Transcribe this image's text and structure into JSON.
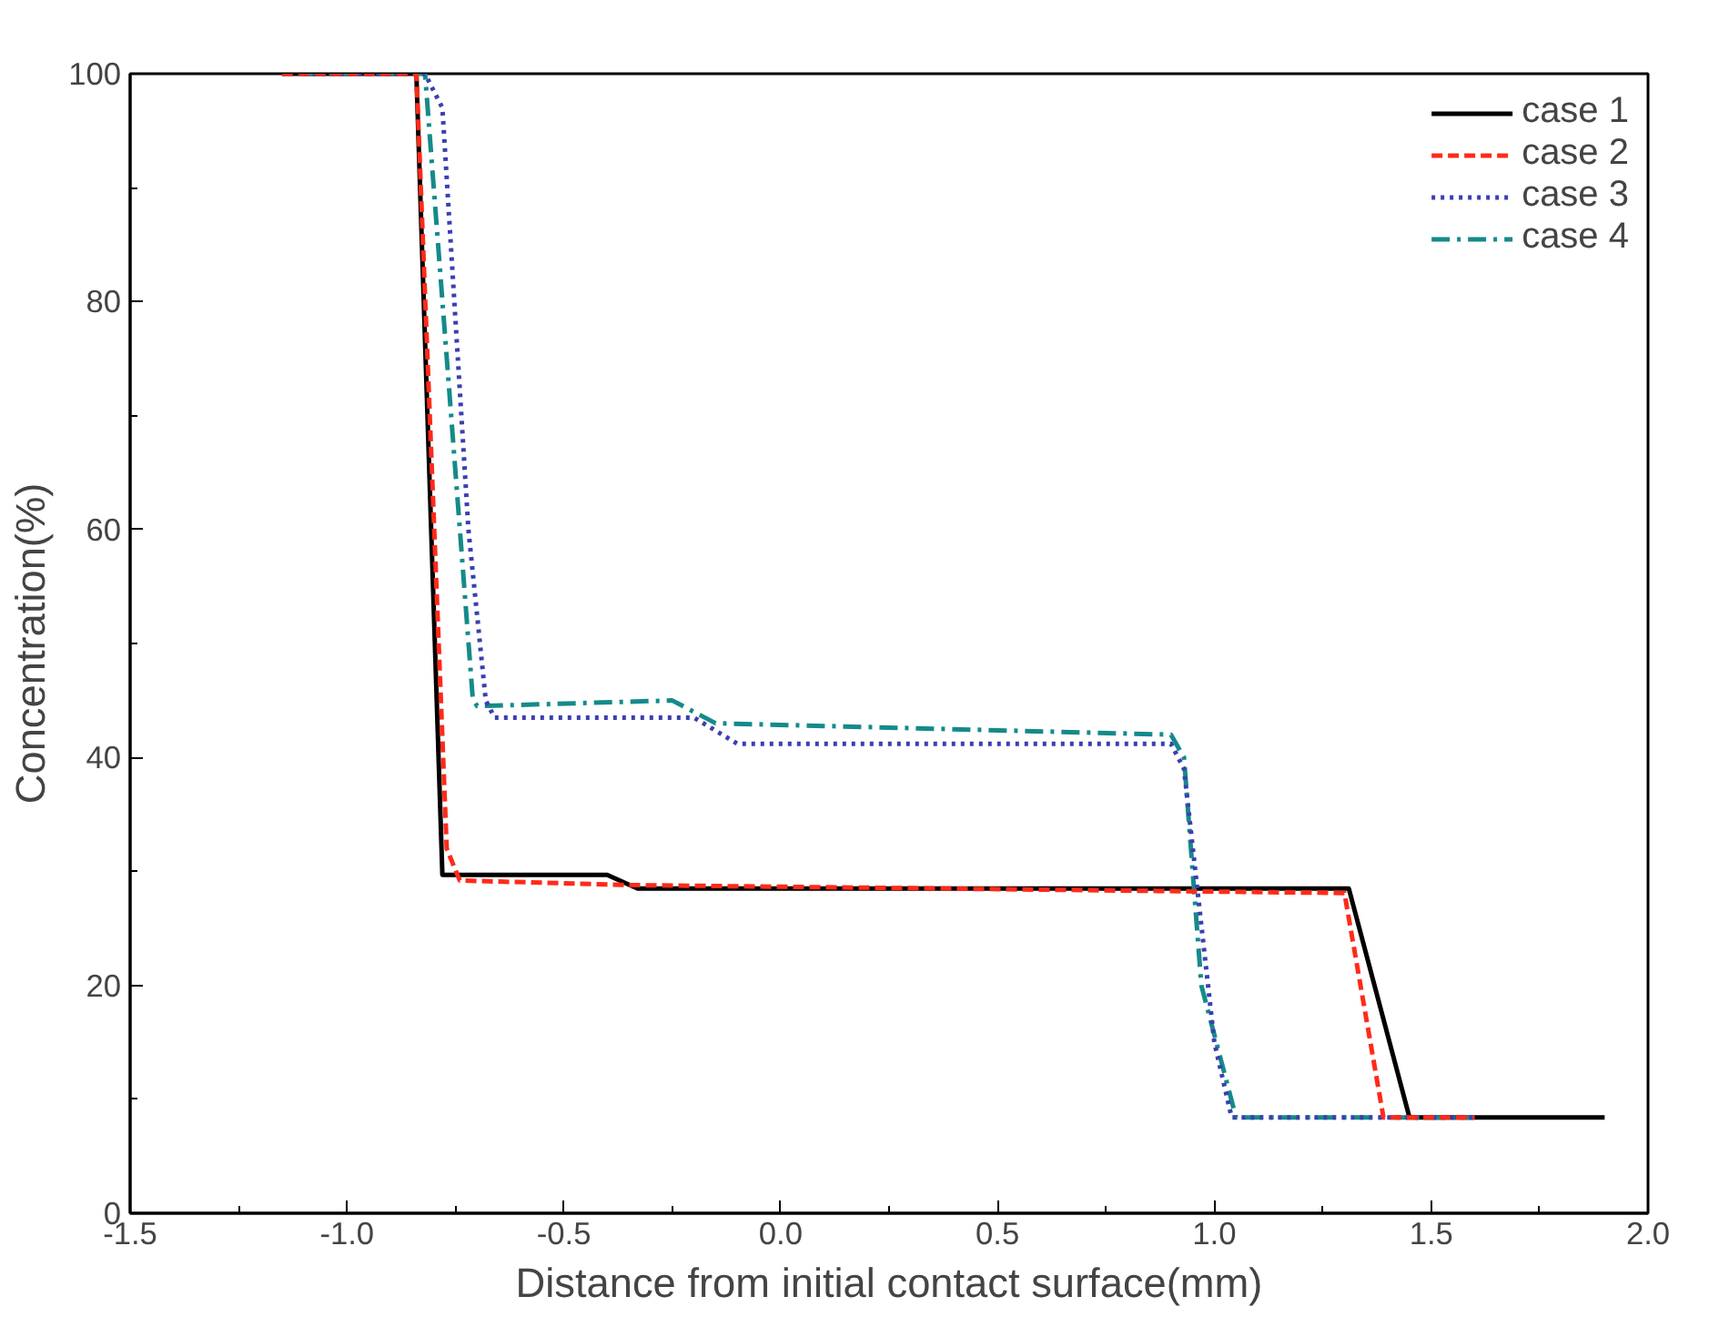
{
  "chart_data": {
    "type": "line",
    "xlabel": "Distance from initial contact surface(mm)",
    "ylabel": "Concentration(%)",
    "xlim": [
      -1.5,
      2.0
    ],
    "ylim": [
      0,
      100
    ],
    "xticks": [
      {
        "value": -1.5,
        "label": "-1.5"
      },
      {
        "value": -1.0,
        "label": "-1.0"
      },
      {
        "value": -0.5,
        "label": "-0.5"
      },
      {
        "value": 0.0,
        "label": "0.0"
      },
      {
        "value": 0.5,
        "label": "0.5"
      },
      {
        "value": 1.0,
        "label": "1.0"
      },
      {
        "value": 1.5,
        "label": "1.5"
      },
      {
        "value": 2.0,
        "label": "2.0"
      }
    ],
    "yticks": [
      0,
      20,
      40,
      60,
      80,
      100
    ],
    "grid": false,
    "legend": "top right",
    "marker": "none",
    "series": [
      {
        "name": "case 1",
        "color": "#000000",
        "line_style": "solid",
        "x": [
          -1.15,
          -0.84,
          -0.78,
          -0.4,
          -0.33,
          1.31,
          1.45,
          1.9
        ],
        "values": [
          100,
          100,
          29.7,
          29.7,
          28.5,
          28.5,
          8.4,
          8.4
        ]
      },
      {
        "name": "case 2",
        "color": "#ff2a1a",
        "line_style": "dashed",
        "x": [
          -1.15,
          -0.84,
          -0.77,
          -0.74,
          -0.35,
          1.3,
          1.39,
          1.6
        ],
        "values": [
          100,
          100,
          32,
          29.2,
          28.8,
          28.1,
          8.4,
          8.4
        ]
      },
      {
        "name": "case 3",
        "color": "#3a3fb0",
        "line_style": "dotted",
        "x": [
          -1.1,
          -0.82,
          -0.78,
          -0.72,
          -0.68,
          -0.66,
          -0.2,
          -0.1,
          0.9,
          0.93,
          1.0,
          1.04,
          1.6
        ],
        "values": [
          100,
          100,
          97,
          60,
          45,
          43.5,
          43.5,
          41.2,
          41.2,
          39,
          15,
          8.4,
          8.4
        ]
      },
      {
        "name": "case 4",
        "color": "#158a8a",
        "line_style": "dashdot",
        "x": [
          -1.1,
          -0.82,
          -0.71,
          -0.7,
          -0.25,
          -0.15,
          0.9,
          0.93,
          0.97,
          1.05,
          1.6
        ],
        "values": [
          100,
          100,
          45.2,
          44.5,
          45,
          43,
          42,
          40,
          20,
          8.4,
          8.4
        ]
      }
    ]
  }
}
